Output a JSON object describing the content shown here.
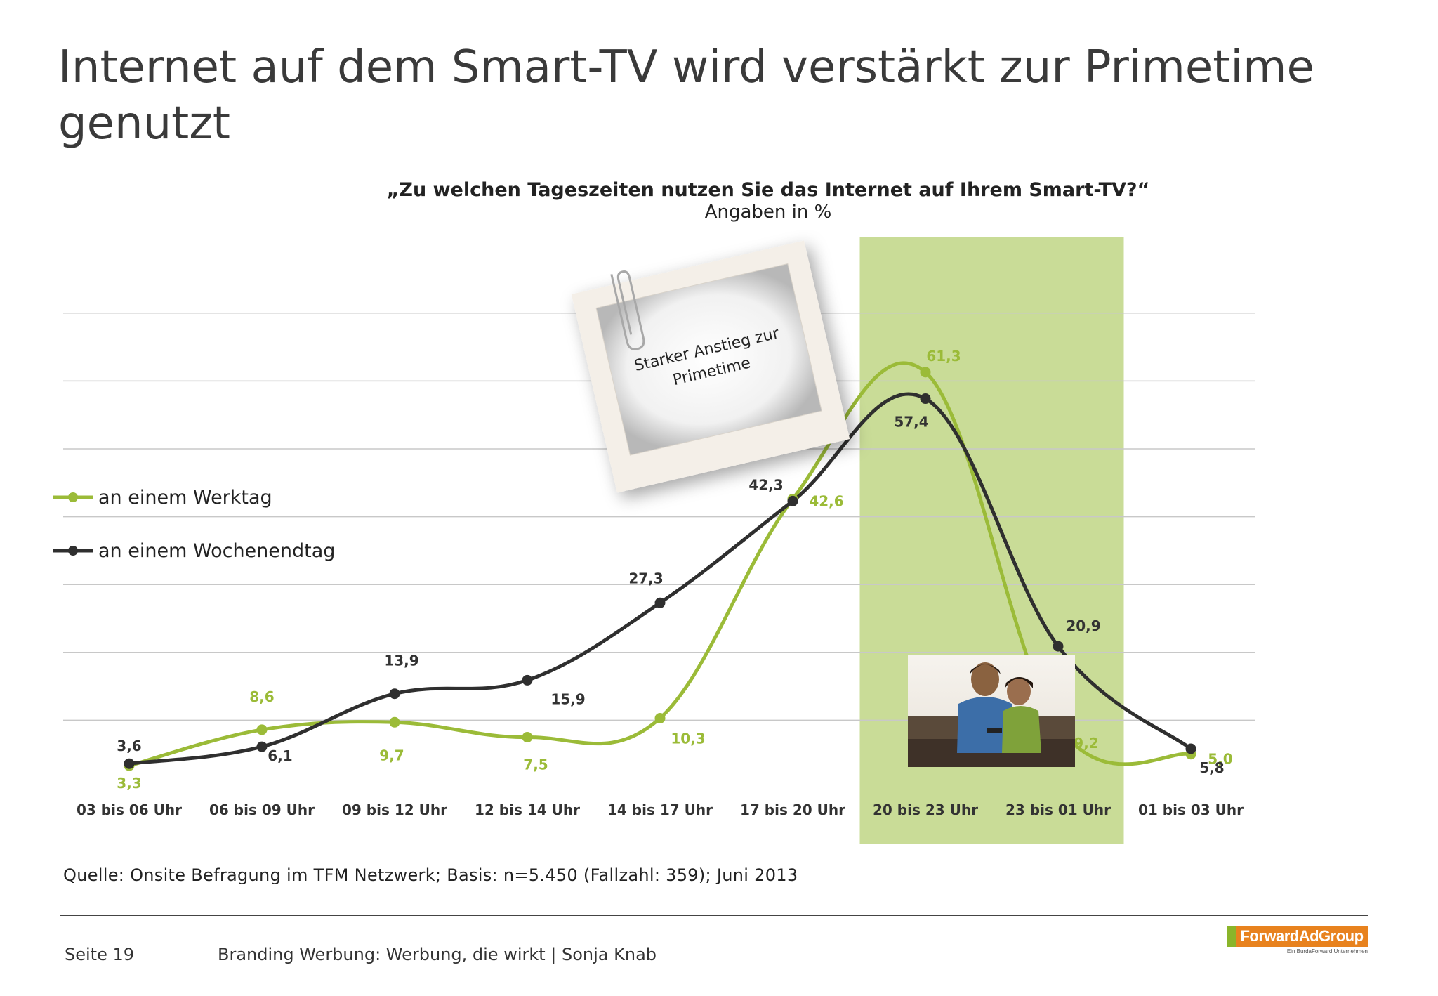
{
  "title": "Internet auf dem Smart-TV wird verstärkt zur Primetime genutzt",
  "chart_data": {
    "type": "line",
    "title": "„Zu welchen Tageszeiten nutzen Sie das Internet auf Ihrem Smart-TV?“",
    "subtitle": "Angaben in %",
    "categories": [
      "03 bis 06 Uhr",
      "06 bis 09 Uhr",
      "09 bis 12 Uhr",
      "12 bis 14 Uhr",
      "14 bis 17 Uhr",
      "17 bis 20 Uhr",
      "20 bis 23 Uhr",
      "23 bis 01 Uhr",
      "01 bis 03 Uhr"
    ],
    "series": [
      {
        "name": "an einem Werktag",
        "values": [
          3.3,
          8.6,
          9.7,
          7.5,
          10.3,
          42.6,
          61.3,
          9.2,
          5.0
        ],
        "labels": [
          "3,3",
          "8,6",
          "9,7",
          "7,5",
          "10,3",
          "42,6",
          "61,3",
          "9,2",
          "5,0"
        ],
        "color": "#9bbb38"
      },
      {
        "name": "an einem Wochenendtag",
        "values": [
          3.6,
          6.1,
          13.9,
          15.9,
          27.3,
          42.3,
          57.4,
          20.9,
          5.8
        ],
        "labels": [
          "3,6",
          "6,1",
          "13,9",
          "15,9",
          "27,3",
          "42,3",
          "57,4",
          "20,9",
          "5,8"
        ],
        "color": "#2f2f2f"
      }
    ],
    "highlight": {
      "from": "20 bis 23 Uhr",
      "to": "23 bis 01 Uhr",
      "color": "#c9dc97"
    },
    "ylim": [
      0,
      70
    ],
    "grid": true,
    "legend": "left",
    "annotation": "Starker Anstieg zur Primetime"
  },
  "source": "Quelle: Onsite Befragung im TFM Netzwerk; Basis: n=5.450 (Fallzahl: 359); Juni 2013",
  "footer": {
    "page": "Seite 19",
    "text": "Branding Werbung: Werbung, die wirkt | Sonja Knab",
    "logo": "ForwardAdGroup",
    "logo_tagline": "Ein BurdaForward Unternehmen"
  }
}
